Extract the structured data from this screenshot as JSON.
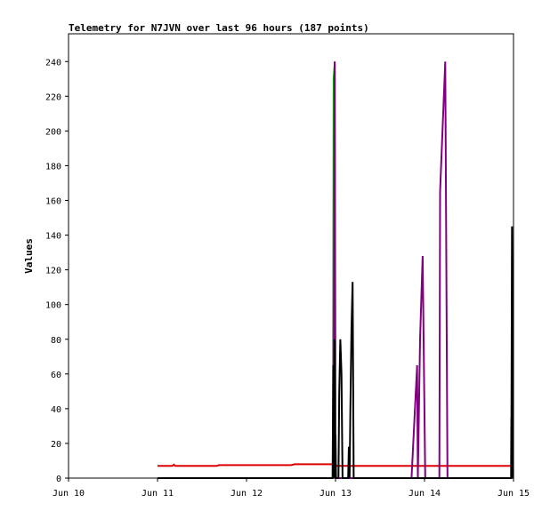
{
  "chart_data": {
    "type": "line",
    "title": "Telemetry for N7JVN over last 96 hours (187 points)",
    "ylabel": "Values",
    "xlabel": "",
    "x_unit": "hours since Jun 10 00:00",
    "xlim": [
      0,
      120
    ],
    "ylim": [
      0,
      256
    ],
    "x_ticks": [
      {
        "label": "Jun 10",
        "x": 0
      },
      {
        "label": "Jun 11",
        "x": 24
      },
      {
        "label": "Jun 12",
        "x": 48
      },
      {
        "label": "Jun 13",
        "x": 72
      },
      {
        "label": "Jun 14",
        "x": 96
      },
      {
        "label": "Jun 15",
        "x": 120
      }
    ],
    "y_ticks": [
      0,
      20,
      40,
      60,
      80,
      100,
      120,
      140,
      160,
      180,
      200,
      220,
      240
    ],
    "grid": false,
    "series": [
      {
        "color": "#dd0000",
        "points": [
          [
            24,
            7
          ],
          [
            28,
            7
          ],
          [
            28.4,
            7.8
          ],
          [
            28.8,
            7
          ],
          [
            40,
            7
          ],
          [
            40.5,
            7.5
          ],
          [
            60,
            7.5
          ],
          [
            61,
            8
          ],
          [
            71.5,
            8
          ],
          [
            72.3,
            7
          ],
          [
            120,
            7
          ]
        ]
      },
      {
        "color": "#00aa00",
        "points": [
          [
            71.3,
            0
          ],
          [
            71.5,
            230
          ],
          [
            71.8,
            240
          ],
          [
            72.0,
            0
          ],
          [
            76,
            0
          ],
          [
            119.3,
            0
          ],
          [
            119.4,
            35
          ],
          [
            119.6,
            0
          ]
        ]
      },
      {
        "color": "#800080",
        "points": [
          [
            71.5,
            0
          ],
          [
            71.75,
            240
          ],
          [
            72.0,
            0
          ],
          [
            92.5,
            0
          ],
          [
            94.0,
            65
          ],
          [
            94.2,
            0
          ],
          [
            94.8,
            80
          ],
          [
            95.5,
            128
          ],
          [
            96.2,
            0
          ],
          [
            100.0,
            0
          ],
          [
            100.2,
            165
          ],
          [
            101.6,
            240
          ],
          [
            102.2,
            0
          ],
          [
            119.5,
            0
          ]
        ]
      },
      {
        "color": "#000000",
        "points": [
          [
            24,
            0
          ],
          [
            71.2,
            0
          ],
          [
            71.4,
            65
          ],
          [
            71.55,
            0
          ],
          [
            71.7,
            80
          ],
          [
            71.85,
            0
          ],
          [
            72.0,
            25
          ],
          [
            72.15,
            0
          ],
          [
            72.8,
            0
          ],
          [
            73.0,
            50
          ],
          [
            73.3,
            80
          ],
          [
            73.6,
            60
          ],
          [
            73.9,
            0
          ],
          [
            75.4,
            0
          ],
          [
            75.6,
            18
          ],
          [
            75.8,
            0
          ],
          [
            76.0,
            40
          ],
          [
            76.3,
            85
          ],
          [
            76.6,
            113
          ],
          [
            76.9,
            0
          ],
          [
            119.4,
            0
          ],
          [
            119.6,
            145
          ],
          [
            119.9,
            0
          ]
        ]
      }
    ]
  }
}
